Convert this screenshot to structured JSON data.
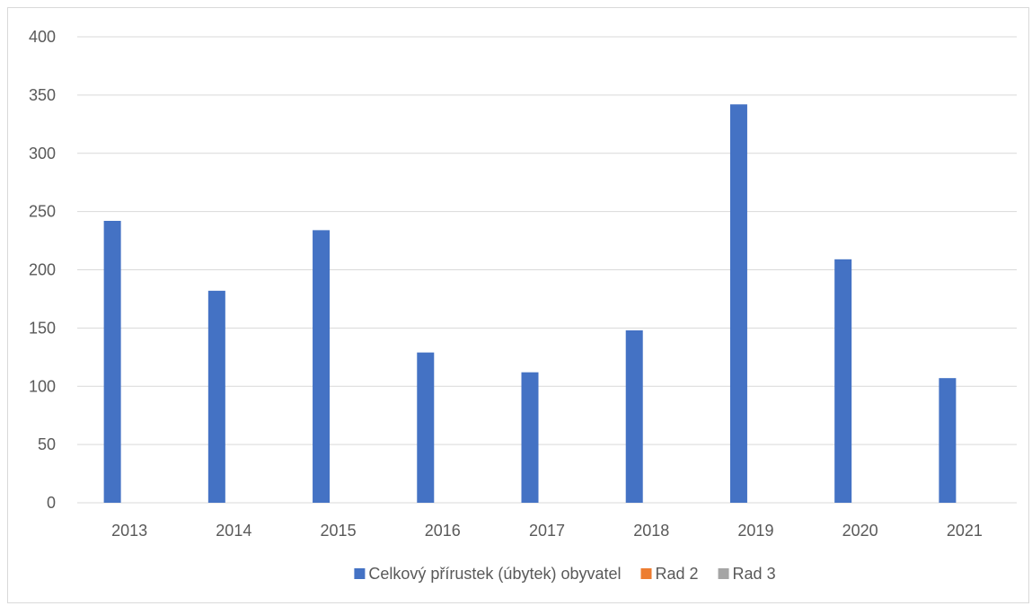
{
  "chart_data": {
    "type": "bar",
    "title": "",
    "xlabel": "",
    "ylabel": "",
    "categories": [
      "2013",
      "2014",
      "2015",
      "2016",
      "2017",
      "2018",
      "2019",
      "2020",
      "2021"
    ],
    "series": [
      {
        "name": "Celkový přírustek (úbytek) obyvatel",
        "color": "#4472c4",
        "values": [
          242,
          182,
          234,
          129,
          112,
          148,
          342,
          209,
          107
        ]
      },
      {
        "name": "Rad 2",
        "color": "#ed7d31",
        "values": [
          0,
          0,
          0,
          0,
          0,
          0,
          0,
          0,
          0
        ]
      },
      {
        "name": "Rad 3",
        "color": "#a5a5a5",
        "values": [
          0,
          0,
          0,
          0,
          0,
          0,
          0,
          0,
          0
        ]
      }
    ],
    "ylim": [
      0,
      400
    ],
    "yticks": [
      "0",
      "50",
      "100",
      "150",
      "200",
      "250",
      "300",
      "350",
      "400"
    ],
    "grid": true,
    "gridline_color": "#d9d9d9",
    "legend_position": "bottom"
  }
}
